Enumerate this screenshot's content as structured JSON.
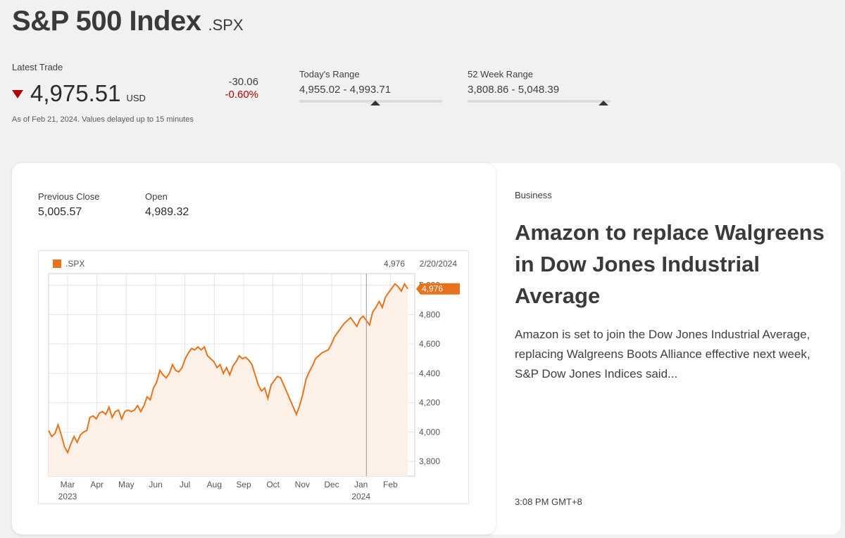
{
  "header": {
    "title": "S&P 500 Index",
    "ticker": ".SPX"
  },
  "latest_trade": {
    "label": "Latest Trade",
    "price": "4,975.51",
    "currency": "USD",
    "change_abs": "-30.06",
    "change_pct": "-0.60%",
    "as_of": "As of Feb 21, 2024. Values delayed up to 15 minutes",
    "down_color": "#b20000"
  },
  "todays_range": {
    "label": "Today's Range",
    "value": "4,955.02 - 4,993.71",
    "position": 0.53
  },
  "week52_range": {
    "label": "52 Week Range",
    "value": "3,808.86 - 5,048.39",
    "position": 0.95
  },
  "stats": {
    "previous_close_label": "Previous Close",
    "previous_close": "5,005.57",
    "open_label": "Open",
    "open": "4,989.32"
  },
  "chart_data": {
    "type": "area",
    "series": [
      {
        "name": ".SPX",
        "color": "#e8731a"
      }
    ],
    "crosshair_value": "4,976",
    "crosshair_date": "2/20/2024",
    "last_value_label": "4,976",
    "y_ticks": [
      "3,800",
      "4,000",
      "4,200",
      "4,400",
      "4,600",
      "4,800",
      "5,000"
    ],
    "x_ticks": [
      {
        "label": "Mar",
        "sub": "2023"
      },
      {
        "label": "Apr",
        "sub": ""
      },
      {
        "label": "May",
        "sub": ""
      },
      {
        "label": "Jun",
        "sub": ""
      },
      {
        "label": "Jul",
        "sub": ""
      },
      {
        "label": "Aug",
        "sub": ""
      },
      {
        "label": "Sep",
        "sub": ""
      },
      {
        "label": "Oct",
        "sub": ""
      },
      {
        "label": "Nov",
        "sub": ""
      },
      {
        "label": "Dec",
        "sub": ""
      },
      {
        "label": "Jan",
        "sub": "2024"
      },
      {
        "label": "Feb",
        "sub": ""
      }
    ],
    "ylim": [
      3700,
      5080
    ],
    "grid": true,
    "legend": "top-left",
    "values": [
      4010,
      3970,
      3990,
      4050,
      3980,
      3900,
      3860,
      3920,
      3970,
      3930,
      3980,
      4000,
      4010,
      4100,
      4110,
      4090,
      4130,
      4140,
      4120,
      4170,
      4100,
      4140,
      4150,
      4090,
      4140,
      4150,
      4140,
      4150,
      4180,
      4140,
      4180,
      4240,
      4220,
      4300,
      4340,
      4420,
      4390,
      4370,
      4400,
      4460,
      4420,
      4410,
      4440,
      4500,
      4540,
      4570,
      4560,
      4580,
      4560,
      4580,
      4520,
      4500,
      4480,
      4440,
      4460,
      4400,
      4440,
      4390,
      4450,
      4480,
      4520,
      4500,
      4510,
      4490,
      4460,
      4390,
      4320,
      4280,
      4300,
      4230,
      4320,
      4350,
      4380,
      4370,
      4320,
      4270,
      4220,
      4170,
      4120,
      4180,
      4260,
      4360,
      4410,
      4450,
      4500,
      4520,
      4540,
      4550,
      4560,
      4600,
      4650,
      4680,
      4710,
      4740,
      4760,
      4780,
      4750,
      4720,
      4770,
      4790,
      4760,
      4730,
      4820,
      4850,
      4890,
      4850,
      4920,
      4950,
      4980,
      5010,
      4990,
      4960,
      5010,
      4976
    ]
  },
  "news": {
    "category": "Business",
    "title": "Amazon to replace Walgreens in Dow Jones Industrial Average",
    "summary": "Amazon is set to join the Dow Jones Industrial Average, replacing Walgreens Boots Alliance effective next week, S&P Dow Jones Indices said...",
    "time": "3:08 PM GMT+8"
  }
}
